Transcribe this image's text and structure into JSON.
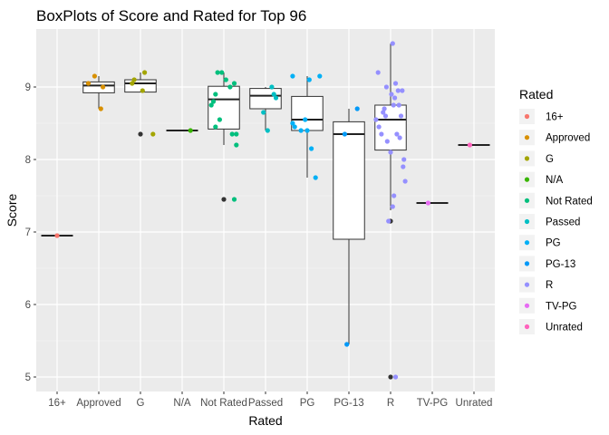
{
  "chart_data": {
    "type": "boxplot",
    "title": "BoxPlots of Score and Rated for Top 96",
    "xlabel": "Rated",
    "ylabel": "Score",
    "ylim": [
      4.8,
      9.8
    ],
    "yticks": [
      5,
      6,
      7,
      8,
      9
    ],
    "categories": [
      "16+",
      "Approved",
      "G",
      "N/A",
      "Not Rated",
      "Passed",
      "PG",
      "PG-13",
      "R",
      "TV-PG",
      "Unrated"
    ],
    "colors": {
      "16+": "#F8766D",
      "Approved": "#D89000",
      "G": "#A3A500",
      "N/A": "#39B600",
      "Not Rated": "#00BF7D",
      "Passed": "#00BFC4",
      "PG": "#00B0F6",
      "PG-13": "#0099F8",
      "R": "#9590FF",
      "TV-PG": "#E76BF3",
      "Unrated": "#FF62BC"
    },
    "boxes": [
      {
        "category": "16+",
        "q1": 6.95,
        "median": 6.95,
        "q3": 6.95,
        "whisker_low": 6.95,
        "whisker_high": 6.95,
        "outliers": []
      },
      {
        "category": "Approved",
        "q1": 8.92,
        "median": 9.02,
        "q3": 9.07,
        "whisker_low": 8.7,
        "whisker_high": 9.15,
        "outliers": []
      },
      {
        "category": "G",
        "q1": 8.93,
        "median": 9.05,
        "q3": 9.1,
        "whisker_low": 8.93,
        "whisker_high": 9.2,
        "outliers": [
          8.35
        ]
      },
      {
        "category": "N/A",
        "q1": 8.4,
        "median": 8.4,
        "q3": 8.4,
        "whisker_low": 8.4,
        "whisker_high": 8.4,
        "outliers": []
      },
      {
        "category": "Not Rated",
        "q1": 8.42,
        "median": 8.83,
        "q3": 9.01,
        "whisker_low": 8.2,
        "whisker_high": 9.2,
        "outliers": [
          7.45
        ]
      },
      {
        "category": "Passed",
        "q1": 8.7,
        "median": 8.88,
        "q3": 8.98,
        "whisker_low": 8.4,
        "whisker_high": 9.0,
        "outliers": []
      },
      {
        "category": "PG",
        "q1": 8.4,
        "median": 8.55,
        "q3": 8.87,
        "whisker_low": 7.75,
        "whisker_high": 9.15,
        "outliers": []
      },
      {
        "category": "PG-13",
        "q1": 6.9,
        "median": 8.35,
        "q3": 8.52,
        "whisker_low": 5.45,
        "whisker_high": 8.7,
        "outliers": []
      },
      {
        "category": "R",
        "q1": 8.13,
        "median": 8.55,
        "q3": 8.75,
        "whisker_low": 7.3,
        "whisker_high": 9.6,
        "outliers": [
          7.15,
          5.0
        ]
      },
      {
        "category": "TV-PG",
        "q1": 7.4,
        "median": 7.4,
        "q3": 7.4,
        "whisker_low": 7.4,
        "whisker_high": 7.4,
        "outliers": []
      },
      {
        "category": "Unrated",
        "q1": 8.2,
        "median": 8.2,
        "q3": 8.2,
        "whisker_low": 8.2,
        "whisker_high": 8.2,
        "outliers": []
      }
    ],
    "points": [
      {
        "category": "16+",
        "jitter": 0.0,
        "y": 6.95
      },
      {
        "category": "Approved",
        "jitter": -0.25,
        "y": 9.05
      },
      {
        "category": "Approved",
        "jitter": -0.1,
        "y": 9.15
      },
      {
        "category": "Approved",
        "jitter": 0.1,
        "y": 9.0
      },
      {
        "category": "Approved",
        "jitter": 0.05,
        "y": 8.7
      },
      {
        "category": "G",
        "jitter": -0.2,
        "y": 9.05
      },
      {
        "category": "G",
        "jitter": -0.15,
        "y": 9.1
      },
      {
        "category": "G",
        "jitter": 0.1,
        "y": 9.2
      },
      {
        "category": "G",
        "jitter": 0.05,
        "y": 8.95
      },
      {
        "category": "G",
        "jitter": 0.3,
        "y": 8.35
      },
      {
        "category": "N/A",
        "jitter": 0.2,
        "y": 8.4
      },
      {
        "category": "Not Rated",
        "jitter": -0.3,
        "y": 8.75
      },
      {
        "category": "Not Rated",
        "jitter": -0.25,
        "y": 8.8
      },
      {
        "category": "Not Rated",
        "jitter": -0.2,
        "y": 8.9
      },
      {
        "category": "Not Rated",
        "jitter": -0.15,
        "y": 9.2
      },
      {
        "category": "Not Rated",
        "jitter": -0.05,
        "y": 9.2
      },
      {
        "category": "Not Rated",
        "jitter": 0.05,
        "y": 9.1
      },
      {
        "category": "Not Rated",
        "jitter": -0.1,
        "y": 8.55
      },
      {
        "category": "Not Rated",
        "jitter": -0.2,
        "y": 8.45
      },
      {
        "category": "Not Rated",
        "jitter": 0.15,
        "y": 9.0
      },
      {
        "category": "Not Rated",
        "jitter": 0.25,
        "y": 9.05
      },
      {
        "category": "Not Rated",
        "jitter": 0.2,
        "y": 8.35
      },
      {
        "category": "Not Rated",
        "jitter": 0.3,
        "y": 8.35
      },
      {
        "category": "Not Rated",
        "jitter": 0.3,
        "y": 8.2
      },
      {
        "category": "Not Rated",
        "jitter": 0.25,
        "y": 7.45
      },
      {
        "category": "Passed",
        "jitter": -0.05,
        "y": 8.65
      },
      {
        "category": "Passed",
        "jitter": 0.05,
        "y": 8.4
      },
      {
        "category": "Passed",
        "jitter": 0.15,
        "y": 9.0
      },
      {
        "category": "Passed",
        "jitter": 0.2,
        "y": 8.9
      },
      {
        "category": "Passed",
        "jitter": 0.25,
        "y": 8.85
      },
      {
        "category": "PG",
        "jitter": -0.35,
        "y": 9.15
      },
      {
        "category": "PG",
        "jitter": -0.35,
        "y": 8.5
      },
      {
        "category": "PG",
        "jitter": -0.3,
        "y": 8.45
      },
      {
        "category": "PG",
        "jitter": -0.15,
        "y": 8.4
      },
      {
        "category": "PG",
        "jitter": -0.05,
        "y": 8.55
      },
      {
        "category": "PG",
        "jitter": 0.0,
        "y": 8.4
      },
      {
        "category": "PG",
        "jitter": 0.05,
        "y": 9.1
      },
      {
        "category": "PG",
        "jitter": 0.1,
        "y": 8.15
      },
      {
        "category": "PG",
        "jitter": 0.3,
        "y": 9.15
      },
      {
        "category": "PG",
        "jitter": 0.2,
        "y": 7.75
      },
      {
        "category": "PG-13",
        "jitter": -0.1,
        "y": 8.35
      },
      {
        "category": "PG-13",
        "jitter": -0.05,
        "y": 5.45
      },
      {
        "category": "PG-13",
        "jitter": 0.2,
        "y": 8.7
      },
      {
        "category": "R",
        "jitter": -0.35,
        "y": 8.55
      },
      {
        "category": "R",
        "jitter": -0.3,
        "y": 9.2
      },
      {
        "category": "R",
        "jitter": -0.28,
        "y": 8.45
      },
      {
        "category": "R",
        "jitter": -0.22,
        "y": 8.35
      },
      {
        "category": "R",
        "jitter": -0.18,
        "y": 8.65
      },
      {
        "category": "R",
        "jitter": -0.15,
        "y": 8.7
      },
      {
        "category": "R",
        "jitter": -0.12,
        "y": 8.6
      },
      {
        "category": "R",
        "jitter": -0.1,
        "y": 9.0
      },
      {
        "category": "R",
        "jitter": -0.08,
        "y": 8.25
      },
      {
        "category": "R",
        "jitter": -0.05,
        "y": 7.15
      },
      {
        "category": "R",
        "jitter": 0.0,
        "y": 8.1
      },
      {
        "category": "R",
        "jitter": 0.02,
        "y": 8.9
      },
      {
        "category": "R",
        "jitter": 0.05,
        "y": 9.6
      },
      {
        "category": "R",
        "jitter": 0.07,
        "y": 8.75
      },
      {
        "category": "R",
        "jitter": 0.1,
        "y": 8.85
      },
      {
        "category": "R",
        "jitter": 0.12,
        "y": 9.05
      },
      {
        "category": "R",
        "jitter": 0.15,
        "y": 8.35
      },
      {
        "category": "R",
        "jitter": 0.18,
        "y": 8.95
      },
      {
        "category": "R",
        "jitter": 0.2,
        "y": 8.75
      },
      {
        "category": "R",
        "jitter": 0.22,
        "y": 8.3
      },
      {
        "category": "R",
        "jitter": 0.25,
        "y": 8.6
      },
      {
        "category": "R",
        "jitter": 0.28,
        "y": 8.95
      },
      {
        "category": "R",
        "jitter": 0.3,
        "y": 7.9
      },
      {
        "category": "R",
        "jitter": 0.32,
        "y": 8.0
      },
      {
        "category": "R",
        "jitter": 0.35,
        "y": 7.7
      },
      {
        "category": "R",
        "jitter": 0.08,
        "y": 7.5
      },
      {
        "category": "R",
        "jitter": 0.05,
        "y": 7.35
      },
      {
        "category": "R",
        "jitter": 0.12,
        "y": 5.0
      },
      {
        "category": "TV-PG",
        "jitter": -0.1,
        "y": 7.4
      },
      {
        "category": "Unrated",
        "jitter": -0.1,
        "y": 8.2
      }
    ],
    "grid": true,
    "legend": {
      "title": "Rated",
      "placement": "right"
    }
  }
}
